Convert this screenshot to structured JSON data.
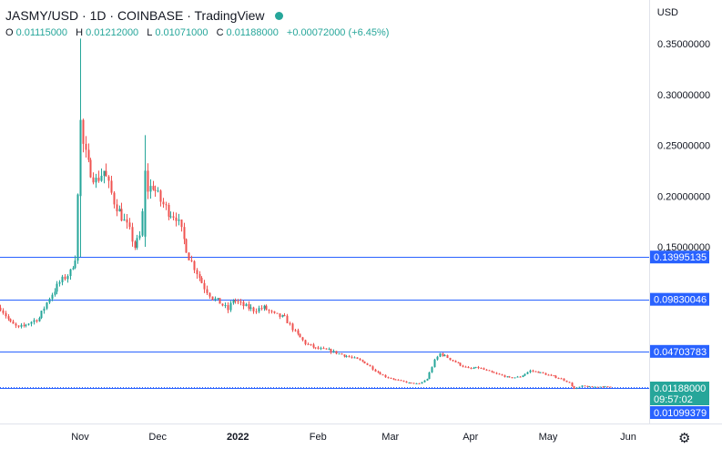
{
  "header": {
    "symbol": "JASMY/USD",
    "interval": "1D",
    "exchange": "COINBASE",
    "source": "TradingView",
    "status_color": "#26a69a"
  },
  "ohlc": {
    "open_label": "O",
    "open": "0.01115000",
    "high_label": "H",
    "high": "0.01212000",
    "low_label": "L",
    "low": "0.01071000",
    "close_label": "C",
    "close": "0.01188000",
    "change": "+0.00072000 (+6.45%)"
  },
  "currency": "USD",
  "colors": {
    "up": "#26a69a",
    "down": "#ef5350",
    "hline": "#2962ff",
    "label_bg": "#2962ff",
    "last_price_line": "#2962ff"
  },
  "chart_data": {
    "type": "candlestick",
    "ylim": [
      0.0,
      0.37
    ],
    "y_ticks": [
      {
        "value": 0.35,
        "label": "0.35000000"
      },
      {
        "value": 0.3,
        "label": "0.30000000"
      },
      {
        "value": 0.25,
        "label": "0.25000000"
      },
      {
        "value": 0.2,
        "label": "0.20000000"
      },
      {
        "value": 0.15,
        "label": "0.15000000"
      }
    ],
    "x_ticks": [
      {
        "date": "2021-11-01",
        "label": "Nov",
        "bold": false
      },
      {
        "date": "2021-12-01",
        "label": "Dec",
        "bold": false
      },
      {
        "date": "2022-01-01",
        "label": "2022",
        "bold": true
      },
      {
        "date": "2022-02-01",
        "label": "Feb",
        "bold": false
      },
      {
        "date": "2022-03-01",
        "label": "Mar",
        "bold": false
      },
      {
        "date": "2022-04-01",
        "label": "Apr",
        "bold": false
      },
      {
        "date": "2022-05-01",
        "label": "May",
        "bold": false
      },
      {
        "date": "2022-06-01",
        "label": "Jun",
        "bold": false
      }
    ],
    "x_range": [
      "2021-10-01",
      "2022-06-01"
    ],
    "horizontal_lines": [
      {
        "value": 0.13995135,
        "label": "0.13995135"
      },
      {
        "value": 0.09830046,
        "label": "0.09830046"
      },
      {
        "value": 0.04703783,
        "label": "0.04703783"
      },
      {
        "value": 0.01099379,
        "label": "0.01099379"
      }
    ],
    "last_price": {
      "value": 0.01188,
      "label": "0.01188000",
      "countdown": "09:57:02"
    },
    "trend": [
      [
        "2021-10-01",
        0.09
      ],
      [
        "2021-10-05",
        0.075
      ],
      [
        "2021-10-08",
        0.07
      ],
      [
        "2021-10-12",
        0.075
      ],
      [
        "2021-10-16",
        0.08
      ],
      [
        "2021-10-20",
        0.1
      ],
      [
        "2021-10-24",
        0.115
      ],
      [
        "2021-10-28",
        0.125
      ],
      [
        "2021-10-30",
        0.14
      ],
      [
        "2021-10-31",
        0.2
      ],
      [
        "2021-11-01",
        0.265
      ],
      [
        "2021-11-02",
        0.25
      ],
      [
        "2021-11-04",
        0.23
      ],
      [
        "2021-11-07",
        0.215
      ],
      [
        "2021-11-10",
        0.225
      ],
      [
        "2021-11-12",
        0.21
      ],
      [
        "2021-11-14",
        0.195
      ],
      [
        "2021-11-17",
        0.18
      ],
      [
        "2021-11-20",
        0.165
      ],
      [
        "2021-11-22",
        0.15
      ],
      [
        "2021-11-24",
        0.16
      ],
      [
        "2021-11-26",
        0.205
      ],
      [
        "2021-11-29",
        0.21
      ],
      [
        "2021-12-02",
        0.195
      ],
      [
        "2021-12-05",
        0.185
      ],
      [
        "2021-12-08",
        0.18
      ],
      [
        "2021-12-10",
        0.165
      ],
      [
        "2021-12-13",
        0.14
      ],
      [
        "2021-12-16",
        0.125
      ],
      [
        "2021-12-19",
        0.11
      ],
      [
        "2021-12-22",
        0.1
      ],
      [
        "2021-12-25",
        0.095
      ],
      [
        "2021-12-28",
        0.088
      ],
      [
        "2021-12-30",
        0.098
      ],
      [
        "2022-01-03",
        0.092
      ],
      [
        "2022-01-07",
        0.088
      ],
      [
        "2022-01-11",
        0.09
      ],
      [
        "2022-01-15",
        0.083
      ],
      [
        "2022-01-19",
        0.08
      ],
      [
        "2022-01-23",
        0.066
      ],
      [
        "2022-01-27",
        0.055
      ],
      [
        "2022-01-31",
        0.05
      ],
      [
        "2022-02-05",
        0.048
      ],
      [
        "2022-02-10",
        0.044
      ],
      [
        "2022-02-15",
        0.04
      ],
      [
        "2022-02-19",
        0.036
      ],
      [
        "2022-02-23",
        0.028
      ],
      [
        "2022-02-27",
        0.022
      ],
      [
        "2022-03-03",
        0.019
      ],
      [
        "2022-03-08",
        0.016
      ],
      [
        "2022-03-12",
        0.015
      ],
      [
        "2022-03-15",
        0.02
      ],
      [
        "2022-03-18",
        0.038
      ],
      [
        "2022-03-20",
        0.045
      ],
      [
        "2022-03-23",
        0.041
      ],
      [
        "2022-03-27",
        0.035
      ],
      [
        "2022-03-31",
        0.03
      ],
      [
        "2022-04-04",
        0.031
      ],
      [
        "2022-04-08",
        0.027
      ],
      [
        "2022-04-12",
        0.024
      ],
      [
        "2022-04-16",
        0.021
      ],
      [
        "2022-04-20",
        0.022
      ],
      [
        "2022-04-24",
        0.028
      ],
      [
        "2022-04-28",
        0.026
      ],
      [
        "2022-05-02",
        0.023
      ],
      [
        "2022-05-06",
        0.02
      ],
      [
        "2022-05-09",
        0.016
      ],
      [
        "2022-05-11",
        0.01
      ],
      [
        "2022-05-14",
        0.013
      ],
      [
        "2022-05-18",
        0.012
      ],
      [
        "2022-05-22",
        0.0125
      ],
      [
        "2022-05-25",
        0.0119
      ]
    ],
    "spikes": [
      {
        "date": "2021-11-01",
        "high": 0.355,
        "low": 0.14,
        "open": 0.2,
        "close": 0.275
      },
      {
        "date": "2021-11-26",
        "high": 0.26,
        "low": 0.15,
        "open": 0.16,
        "close": 0.225
      }
    ]
  }
}
